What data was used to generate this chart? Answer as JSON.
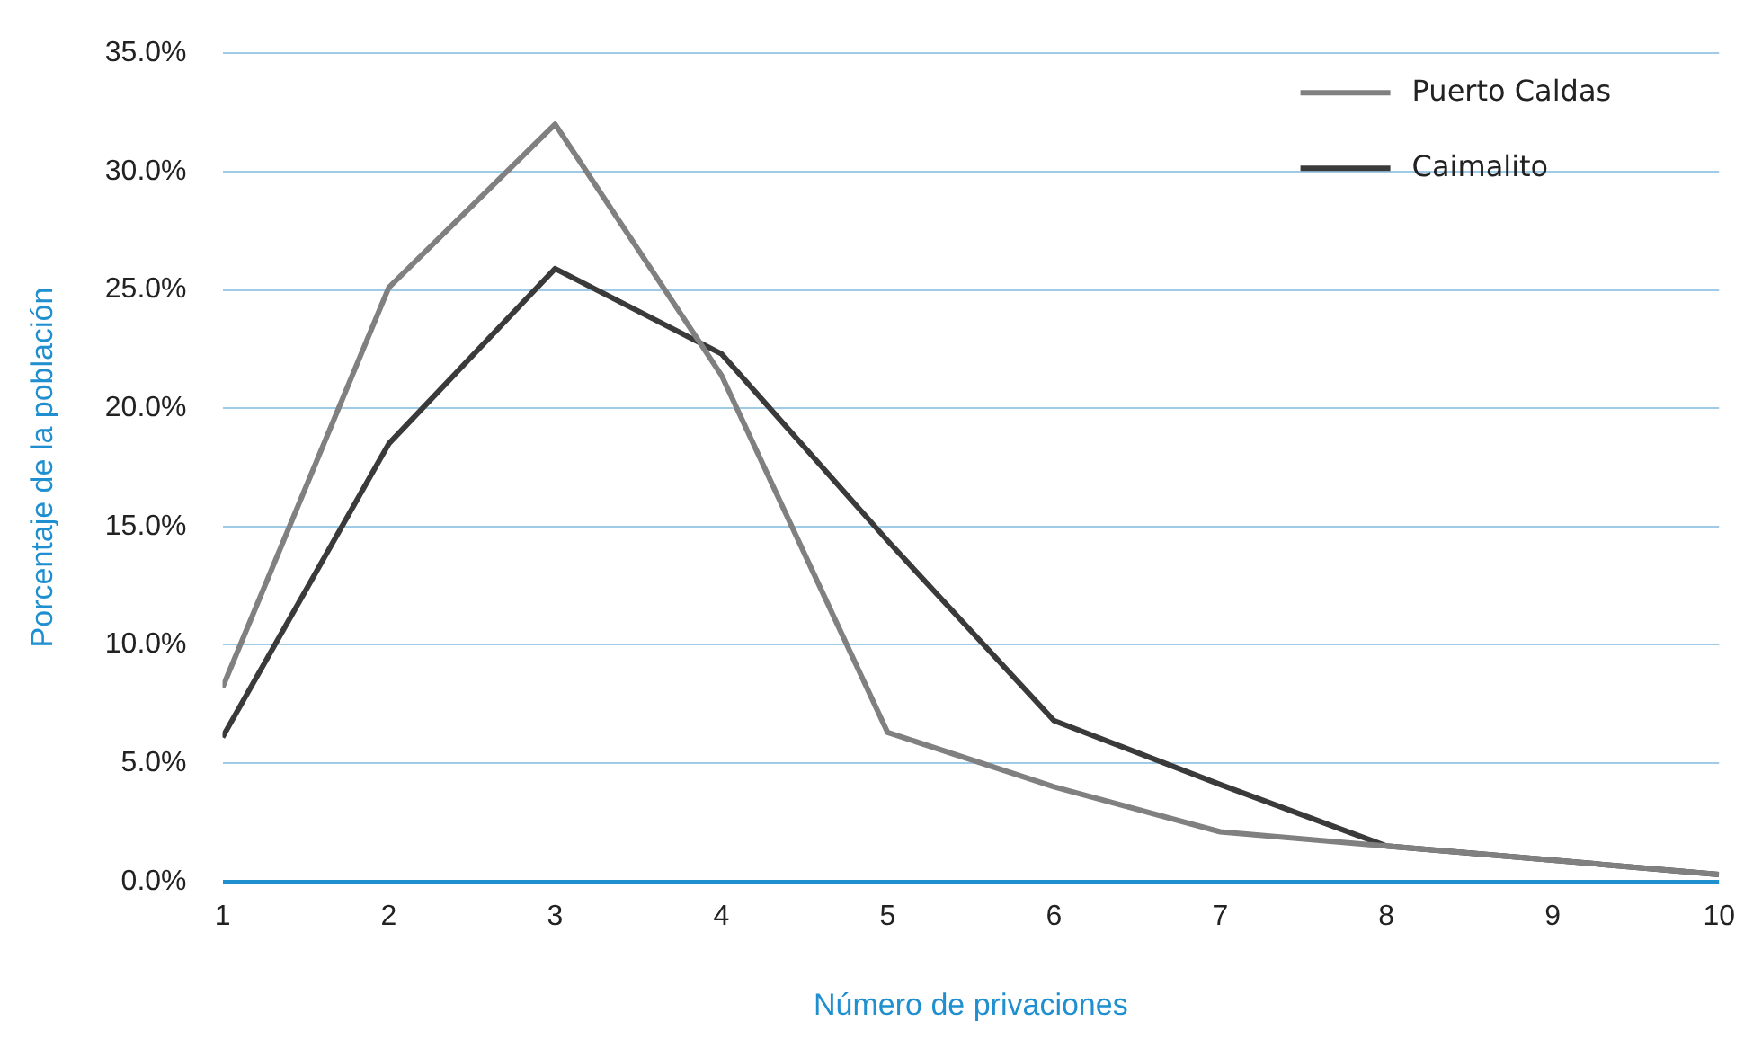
{
  "chart_data": {
    "type": "line",
    "xlabel": "Número de privaciones",
    "ylabel": "Porcentaje de la población",
    "x": [
      1,
      2,
      3,
      4,
      5,
      6,
      7,
      8,
      9,
      10
    ],
    "xlim": [
      1,
      10
    ],
    "xticks": [
      1,
      2,
      3,
      4,
      5,
      6,
      7,
      8,
      9,
      10
    ],
    "ylim": [
      0,
      35
    ],
    "yticks": [
      {
        "value": 0,
        "label": "0.0%"
      },
      {
        "value": 5,
        "label": "5.0%"
      },
      {
        "value": 10,
        "label": "10.0%"
      },
      {
        "value": 15,
        "label": "15.0%"
      },
      {
        "value": 20,
        "label": "20.0%"
      },
      {
        "value": 25,
        "label": "25.0%"
      },
      {
        "value": 30,
        "label": "30.0%"
      },
      {
        "value": 35,
        "label": "35.0%"
      }
    ],
    "grid": "y",
    "legend": "top right",
    "marker": "none",
    "series": [
      {
        "name": "Puerto Caldas",
        "color": "#808080",
        "values": [
          8.2,
          25.1,
          32.0,
          21.4,
          6.3,
          4.0,
          2.1,
          1.5,
          0.9,
          0.3
        ]
      },
      {
        "name": "Caimalito",
        "color": "#3a3a3a",
        "values": [
          6.1,
          18.5,
          25.9,
          22.3,
          14.4,
          6.8,
          4.1,
          1.5,
          0.9,
          0.3
        ]
      }
    ]
  }
}
